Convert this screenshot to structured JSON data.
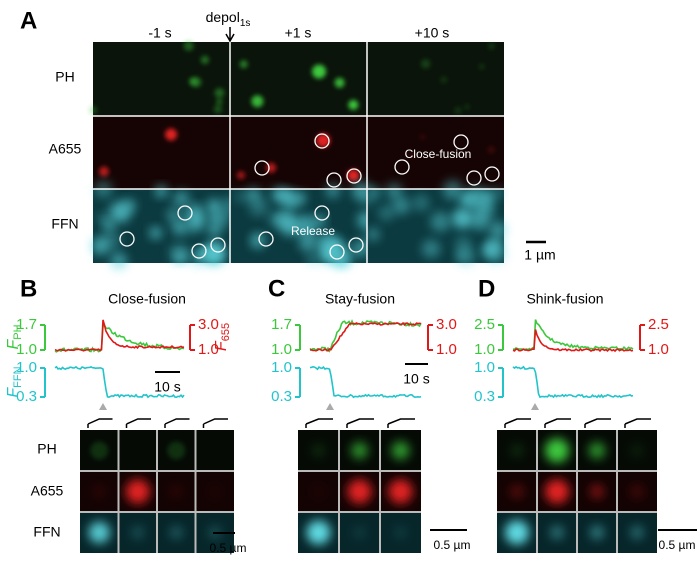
{
  "panel_a": {
    "label": "A",
    "stimulus": {
      "text": "depol",
      "subscript": "1s"
    },
    "columns": [
      "-1 s",
      "+1 s",
      "+10 s"
    ],
    "rows": [
      "PH",
      "A655",
      "FFN"
    ],
    "annotations": [
      "Close-fusion",
      "Release"
    ],
    "scale_bar": "1 µm"
  },
  "panel_b": {
    "label": "B",
    "title": "Close-fusion",
    "y_left": {
      "symbol": "F",
      "subscript": "PH",
      "ticks": [
        "1.7",
        "1.0"
      ]
    },
    "y_right": {
      "symbol": "F",
      "subscript": "655",
      "ticks": [
        "3.0",
        "1.0"
      ]
    },
    "y_lower": {
      "symbol": "F",
      "subscript": "FFN",
      "ticks": [
        "1.0",
        "0.3"
      ]
    },
    "time_scale": "10 s",
    "rows": [
      "PH",
      "A655",
      "FFN"
    ],
    "scale_bar": "0.5 µm"
  },
  "panel_c": {
    "label": "C",
    "title": "Stay-fusion",
    "y_left": {
      "ticks": [
        "1.7",
        "1.0"
      ]
    },
    "y_right": {
      "ticks": [
        "3.0",
        "1.0"
      ]
    },
    "y_lower": {
      "ticks": [
        "1.0",
        "0.3"
      ]
    },
    "time_scale": "10 s",
    "scale_bar": "0.5 µm"
  },
  "panel_d": {
    "label": "D",
    "title": "Shink-fusion",
    "y_left": {
      "ticks": [
        "2.5",
        "1.0"
      ]
    },
    "y_right": {
      "ticks": [
        "2.5",
        "1.0"
      ]
    },
    "y_lower": {
      "ticks": [
        "1.0",
        "0.3"
      ]
    },
    "scale_bar": "0.5 µm"
  }
}
